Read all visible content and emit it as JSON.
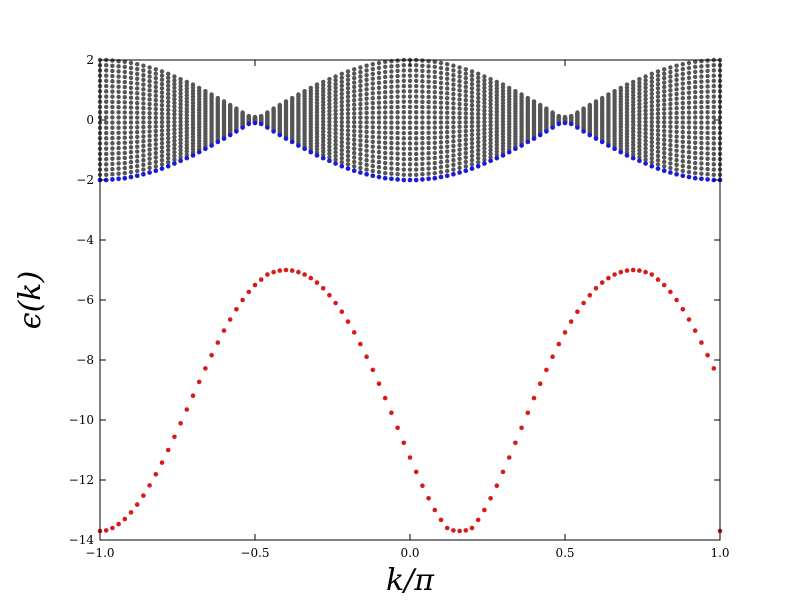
{
  "chart_data": {
    "type": "scatter",
    "title": "",
    "xlabel": "k/π",
    "ylabel": "ϵ(k)",
    "xlim": [
      -1.0,
      1.0
    ],
    "ylim": [
      -14,
      2
    ],
    "x_ticks": [
      "−1.0",
      "−0.5",
      "0.0",
      "0.5",
      "1.0"
    ],
    "x_tick_values": [
      -1.0,
      -0.5,
      0.0,
      0.5,
      1.0
    ],
    "y_ticks": [
      "2",
      "0",
      "−2",
      "−4",
      "−6",
      "−8",
      "−10",
      "−12",
      "−14"
    ],
    "y_tick_values": [
      2,
      0,
      -2,
      -4,
      -6,
      -8,
      -10,
      -12,
      -14
    ],
    "grid": false,
    "series": [
      {
        "color": "#555555",
        "description": "continuum band filling from lower edge -2cos(πk) region up to 2 at each k, ~25 points per k",
        "k": [
          -1.0,
          -0.98,
          -0.96,
          -0.94,
          -0.92,
          -0.9,
          -0.88,
          -0.86,
          -0.84,
          -0.82,
          -0.8,
          -0.78,
          -0.76,
          -0.74,
          -0.72,
          -0.7,
          -0.68,
          -0.66,
          -0.64,
          -0.62,
          -0.6,
          -0.58,
          -0.56,
          -0.54,
          -0.52,
          -0.5,
          -0.48,
          -0.46,
          -0.44,
          -0.42,
          -0.4,
          -0.38,
          -0.36,
          -0.34,
          -0.32,
          -0.3,
          -0.28,
          -0.26,
          -0.24,
          -0.22,
          -0.2,
          -0.18,
          -0.16,
          -0.14,
          -0.12,
          -0.1,
          -0.08,
          -0.06,
          -0.04,
          -0.02,
          0.0,
          0.02,
          0.04,
          0.06,
          0.08,
          0.1,
          0.12,
          0.14,
          0.16,
          0.18,
          0.2,
          0.22,
          0.24,
          0.26,
          0.28,
          0.3,
          0.32,
          0.34,
          0.36,
          0.38,
          0.4,
          0.42,
          0.44,
          0.46,
          0.48,
          0.5,
          0.52,
          0.54,
          0.56,
          0.58,
          0.6,
          0.62,
          0.64,
          0.66,
          0.68,
          0.7,
          0.72,
          0.74,
          0.76,
          0.78,
          0.8,
          0.82,
          0.84,
          0.86,
          0.88,
          0.9,
          0.92,
          0.94,
          0.96,
          0.98,
          1.0
        ],
        "lower": [
          -2.0,
          -2.0,
          -1.98,
          -1.96,
          -1.94,
          -1.9,
          -1.86,
          -1.81,
          -1.75,
          -1.69,
          -1.62,
          -1.54,
          -1.45,
          -1.36,
          -1.27,
          -1.18,
          -1.07,
          -0.96,
          -0.85,
          -0.73,
          -0.62,
          -0.5,
          -0.38,
          -0.25,
          -0.13,
          -0.1,
          -0.13,
          -0.25,
          -0.38,
          -0.5,
          -0.62,
          -0.73,
          -0.85,
          -0.96,
          -1.07,
          -1.18,
          -1.27,
          -1.36,
          -1.45,
          -1.54,
          -1.62,
          -1.69,
          -1.75,
          -1.81,
          -1.86,
          -1.9,
          -1.94,
          -1.96,
          -1.98,
          -2.0,
          -2.0,
          -2.0,
          -1.98,
          -1.96,
          -1.94,
          -1.9,
          -1.86,
          -1.81,
          -1.75,
          -1.69,
          -1.62,
          -1.54,
          -1.45,
          -1.36,
          -1.27,
          -1.18,
          -1.07,
          -0.96,
          -0.85,
          -0.73,
          -0.62,
          -0.5,
          -0.38,
          -0.25,
          -0.13,
          -0.1,
          -0.13,
          -0.25,
          -0.38,
          -0.5,
          -0.62,
          -0.73,
          -0.85,
          -0.96,
          -1.07,
          -1.18,
          -1.27,
          -1.36,
          -1.45,
          -1.54,
          -1.62,
          -1.69,
          -1.75,
          -1.81,
          -1.86,
          -1.9,
          -1.94,
          -1.96,
          -1.98,
          -2.0,
          -2.0
        ],
        "upper": [
          2.0,
          2.0,
          1.98,
          1.96,
          1.94,
          1.9,
          1.86,
          1.81,
          1.75,
          1.69,
          1.62,
          1.54,
          1.45,
          1.36,
          1.27,
          1.18,
          1.07,
          0.96,
          0.85,
          0.73,
          0.62,
          0.5,
          0.38,
          0.25,
          0.13,
          0.1,
          0.13,
          0.25,
          0.38,
          0.5,
          0.62,
          0.73,
          0.85,
          0.96,
          1.07,
          1.18,
          1.27,
          1.36,
          1.45,
          1.54,
          1.62,
          1.69,
          1.75,
          1.81,
          1.86,
          1.9,
          1.94,
          1.96,
          1.98,
          2.0,
          2.0,
          2.0,
          1.98,
          1.96,
          1.94,
          1.9,
          1.86,
          1.81,
          1.75,
          1.69,
          1.62,
          1.54,
          1.45,
          1.36,
          1.27,
          1.18,
          1.07,
          0.96,
          0.85,
          0.73,
          0.62,
          0.5,
          0.38,
          0.25,
          0.13,
          0.1,
          0.13,
          0.25,
          0.38,
          0.5,
          0.62,
          0.73,
          0.85,
          0.96,
          1.07,
          1.18,
          1.27,
          1.36,
          1.45,
          1.54,
          1.62,
          1.69,
          1.75,
          1.81,
          1.86,
          1.9,
          1.94,
          1.96,
          1.98,
          2.0,
          2.0
        ]
      },
      {
        "color": "#1a1adb",
        "description": "lower band edge",
        "k": [
          -1.0,
          -0.98,
          -0.96,
          -0.94,
          -0.92,
          -0.9,
          -0.88,
          -0.86,
          -0.84,
          -0.82,
          -0.8,
          -0.78,
          -0.76,
          -0.74,
          -0.72,
          -0.7,
          -0.68,
          -0.66,
          -0.64,
          -0.62,
          -0.6,
          -0.58,
          -0.56,
          -0.54,
          -0.52,
          -0.5,
          -0.48,
          -0.46,
          -0.44,
          -0.42,
          -0.4,
          -0.38,
          -0.36,
          -0.34,
          -0.32,
          -0.3,
          -0.28,
          -0.26,
          -0.24,
          -0.22,
          -0.2,
          -0.18,
          -0.16,
          -0.14,
          -0.12,
          -0.1,
          -0.08,
          -0.06,
          -0.04,
          -0.02,
          0.0,
          0.02,
          0.04,
          0.06,
          0.08,
          0.1,
          0.12,
          0.14,
          0.16,
          0.18,
          0.2,
          0.22,
          0.24,
          0.26,
          0.28,
          0.3,
          0.32,
          0.34,
          0.36,
          0.38,
          0.4,
          0.42,
          0.44,
          0.46,
          0.48,
          0.5,
          0.52,
          0.54,
          0.56,
          0.58,
          0.6,
          0.62,
          0.64,
          0.66,
          0.68,
          0.7,
          0.72,
          0.74,
          0.76,
          0.78,
          0.8,
          0.82,
          0.84,
          0.86,
          0.88,
          0.9,
          0.92,
          0.94,
          0.96,
          0.98,
          1.0
        ],
        "values": [
          -2.0,
          -2.0,
          -1.98,
          -1.96,
          -1.94,
          -1.9,
          -1.86,
          -1.81,
          -1.75,
          -1.69,
          -1.62,
          -1.54,
          -1.45,
          -1.36,
          -1.27,
          -1.18,
          -1.07,
          -0.96,
          -0.85,
          -0.73,
          -0.62,
          -0.5,
          -0.38,
          -0.25,
          -0.13,
          -0.1,
          -0.13,
          -0.25,
          -0.38,
          -0.5,
          -0.62,
          -0.73,
          -0.85,
          -0.96,
          -1.07,
          -1.18,
          -1.27,
          -1.36,
          -1.45,
          -1.54,
          -1.62,
          -1.69,
          -1.75,
          -1.81,
          -1.86,
          -1.9,
          -1.94,
          -1.96,
          -1.98,
          -2.0,
          -2.0,
          -2.0,
          -1.98,
          -1.96,
          -1.94,
          -1.9,
          -1.86,
          -1.81,
          -1.75,
          -1.69,
          -1.62,
          -1.54,
          -1.45,
          -1.36,
          -1.27,
          -1.18,
          -1.07,
          -0.96,
          -0.85,
          -0.73,
          -0.62,
          -0.5,
          -0.38,
          -0.25,
          -0.13,
          -0.1,
          -0.13,
          -0.25,
          -0.38,
          -0.5,
          -0.62,
          -0.73,
          -0.85,
          -0.96,
          -1.07,
          -1.18,
          -1.27,
          -1.36,
          -1.45,
          -1.54,
          -1.62,
          -1.69,
          -1.75,
          -1.81,
          -1.86,
          -1.9,
          -1.94,
          -1.96,
          -1.98,
          -2.0,
          -2.0
        ]
      },
      {
        "color": "#d81a1a",
        "description": "isolated lower band",
        "k": [
          -1.0,
          -0.98,
          -0.96,
          -0.94,
          -0.92,
          -0.9,
          -0.88,
          -0.86,
          -0.84,
          -0.82,
          -0.8,
          -0.78,
          -0.76,
          -0.74,
          -0.72,
          -0.7,
          -0.68,
          -0.66,
          -0.64,
          -0.62,
          -0.6,
          -0.58,
          -0.56,
          -0.54,
          -0.52,
          -0.5,
          -0.48,
          -0.46,
          -0.44,
          -0.42,
          -0.4,
          -0.38,
          -0.36,
          -0.34,
          -0.32,
          -0.3,
          -0.28,
          -0.26,
          -0.24,
          -0.22,
          -0.2,
          -0.18,
          -0.16,
          -0.14,
          -0.12,
          -0.1,
          -0.08,
          -0.06,
          -0.04,
          -0.02,
          0.0,
          0.02,
          0.04,
          0.06,
          0.08,
          0.1,
          0.12,
          0.14,
          0.16,
          0.18,
          0.2,
          0.22,
          0.24,
          0.26,
          0.28,
          0.3,
          0.32,
          0.34,
          0.36,
          0.38,
          0.4,
          0.42,
          0.44,
          0.46,
          0.48,
          0.5,
          0.52,
          0.54,
          0.56,
          0.58,
          0.6,
          0.62,
          0.64,
          0.66,
          0.68,
          0.7,
          0.72,
          0.74,
          0.76,
          0.78,
          0.8,
          0.82,
          0.84,
          0.86,
          0.88,
          0.9,
          0.92,
          0.94,
          0.96,
          0.98,
          1.0
        ],
        "values": [
          -13.7,
          -13.68,
          -13.6,
          -13.47,
          -13.3,
          -13.08,
          -12.82,
          -12.52,
          -12.18,
          -11.81,
          -11.42,
          -11.0,
          -10.56,
          -10.11,
          -9.65,
          -9.19,
          -8.73,
          -8.28,
          -7.84,
          -7.42,
          -7.02,
          -6.65,
          -6.31,
          -6.0,
          -5.73,
          -5.5,
          -5.32,
          -5.15,
          -5.07,
          -5.02,
          -5.0,
          -5.02,
          -5.07,
          -5.15,
          -5.27,
          -5.42,
          -5.61,
          -5.84,
          -6.1,
          -6.39,
          -6.72,
          -7.08,
          -7.47,
          -7.89,
          -8.33,
          -8.79,
          -9.27,
          -9.76,
          -10.26,
          -10.76,
          -11.25,
          -11.73,
          -12.19,
          -12.61,
          -13.0,
          -13.33,
          -13.6,
          -13.68,
          -13.7,
          -13.68,
          -13.6,
          -13.33,
          -13.0,
          -12.61,
          -12.19,
          -11.73,
          -11.25,
          -10.76,
          -10.26,
          -9.76,
          -9.27,
          -8.79,
          -8.33,
          -7.89,
          -7.47,
          -7.08,
          -6.72,
          -6.39,
          -6.1,
          -5.84,
          -5.61,
          -5.42,
          -5.27,
          -5.15,
          -5.07,
          -5.02,
          -5.0,
          -5.02,
          -5.07,
          -5.15,
          -5.32,
          -5.5,
          -5.73,
          -6.0,
          -6.31,
          -6.65,
          -7.02,
          -7.42,
          -7.84,
          -8.28,
          -13.7
        ]
      }
    ]
  }
}
